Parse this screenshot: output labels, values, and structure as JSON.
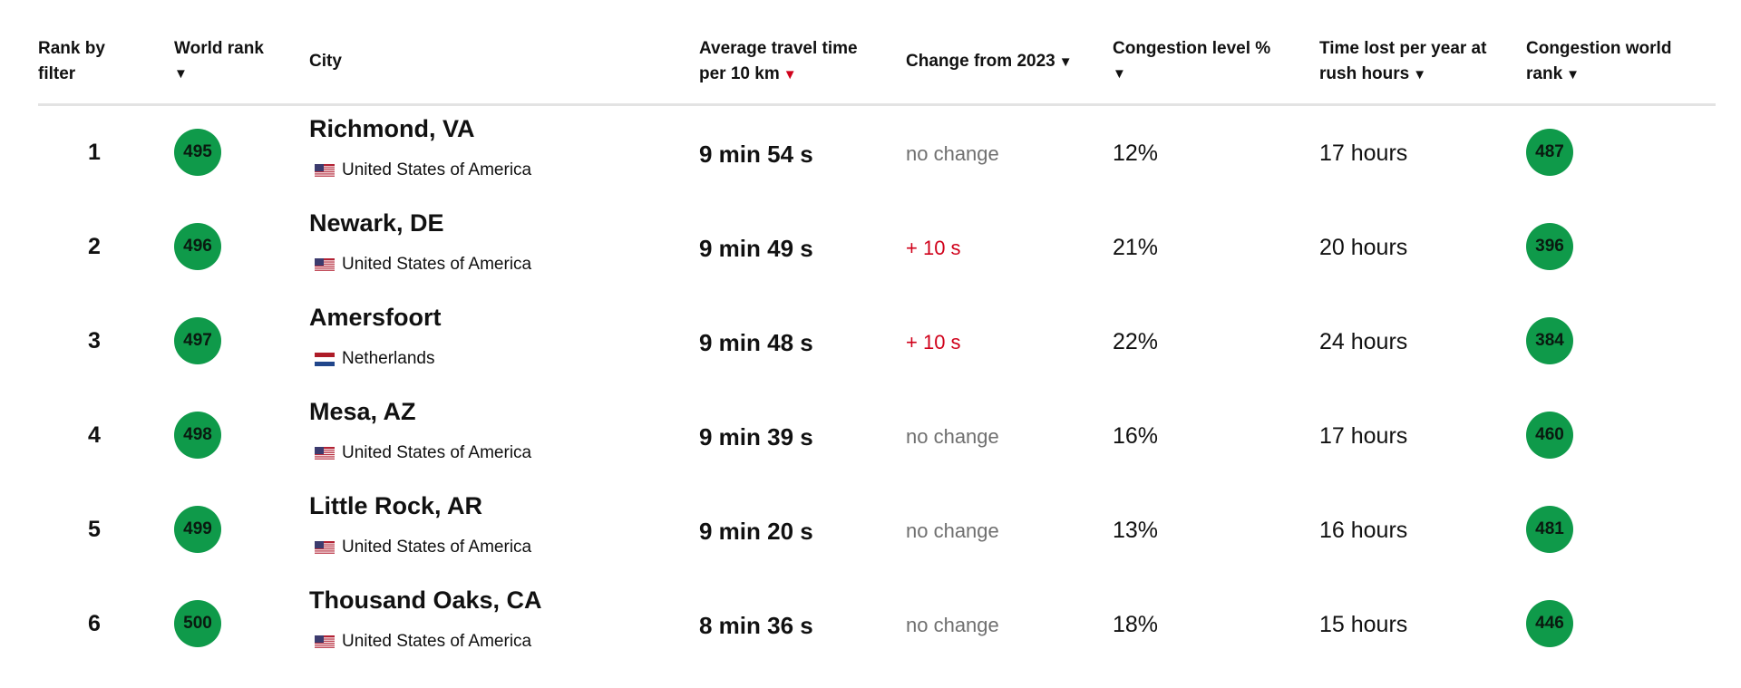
{
  "headers": {
    "rank_by_filter": [
      "Rank by",
      "filter"
    ],
    "world_rank": [
      "World rank",
      "▼"
    ],
    "city": "City",
    "avg_travel": [
      "Average travel time",
      "per 10 km"
    ],
    "avg_travel_arrow": "▼",
    "change": "Change from 2023",
    "change_arrow": "▼",
    "congestion": [
      "Congestion level %",
      "▼"
    ],
    "time_lost": [
      "Time lost per year at",
      "rush hours"
    ],
    "time_lost_arrow": "▼",
    "congestion_rank": [
      "Congestion world",
      "rank"
    ],
    "congestion_rank_arrow": "▼"
  },
  "colors": {
    "badge_green": "#0f9a4a",
    "sort_active_red": "#d0021b",
    "increase_red": "#d0021b",
    "no_change_gray": "#6f6f6f"
  },
  "rows": [
    {
      "rank": "1",
      "world_rank": "495",
      "city": "Richmond, VA",
      "country": "United States of America",
      "flag": "us-flag-icon",
      "travel": "9 min 54 s",
      "change": "no change",
      "change_dir": "none",
      "congestion": "12%",
      "time_lost": "17 hours",
      "congestion_rank": "487"
    },
    {
      "rank": "2",
      "world_rank": "496",
      "city": "Newark, DE",
      "country": "United States of America",
      "flag": "us-flag-icon",
      "travel": "9 min 49 s",
      "change": "+ 10 s",
      "change_dir": "up",
      "congestion": "21%",
      "time_lost": "20 hours",
      "congestion_rank": "396"
    },
    {
      "rank": "3",
      "world_rank": "497",
      "city": "Amersfoort",
      "country": "Netherlands",
      "flag": "nl-flag-icon",
      "travel": "9 min 48 s",
      "change": "+ 10 s",
      "change_dir": "up",
      "congestion": "22%",
      "time_lost": "24 hours",
      "congestion_rank": "384"
    },
    {
      "rank": "4",
      "world_rank": "498",
      "city": "Mesa, AZ",
      "country": "United States of America",
      "flag": "us-flag-icon",
      "travel": "9 min 39 s",
      "change": "no change",
      "change_dir": "none",
      "congestion": "16%",
      "time_lost": "17 hours",
      "congestion_rank": "460"
    },
    {
      "rank": "5",
      "world_rank": "499",
      "city": "Little Rock, AR",
      "country": "United States of America",
      "flag": "us-flag-icon",
      "travel": "9 min 20 s",
      "change": "no change",
      "change_dir": "none",
      "congestion": "13%",
      "time_lost": "16 hours",
      "congestion_rank": "481"
    },
    {
      "rank": "6",
      "world_rank": "500",
      "city": "Thousand Oaks, CA",
      "country": "United States of America",
      "flag": "us-flag-icon",
      "travel": "8 min 36 s",
      "change": "no change",
      "change_dir": "none",
      "congestion": "18%",
      "time_lost": "15 hours",
      "congestion_rank": "446"
    }
  ]
}
